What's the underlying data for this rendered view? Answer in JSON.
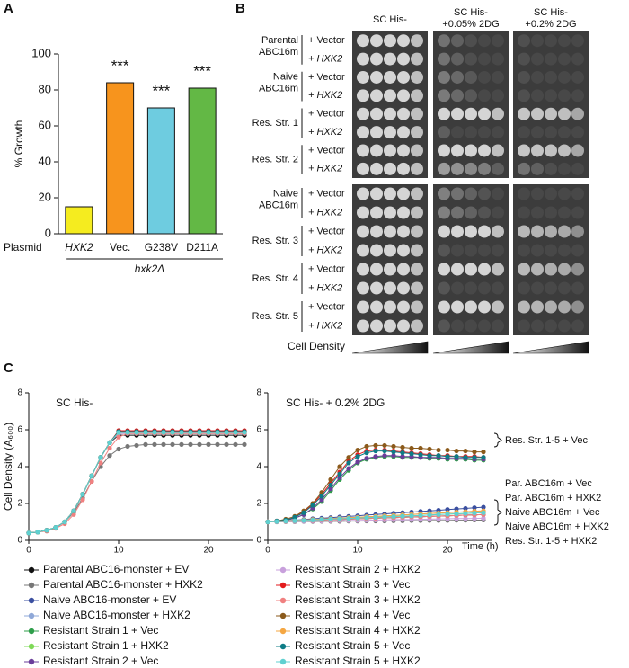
{
  "panel_labels": [
    "A",
    "B",
    "C"
  ],
  "chart_data": [
    {
      "type": "bar",
      "categories": [
        "HXK2",
        "Vec.",
        "G238V",
        "D211A"
      ],
      "values": [
        15,
        84,
        70,
        81
      ],
      "colors": [
        "#f5ec1f",
        "#f7941d",
        "#6ecce0",
        "#63b845"
      ],
      "annotations": [
        null,
        "***",
        "***",
        "***"
      ],
      "ylim": [
        0,
        100
      ],
      "yticks": [
        0,
        20,
        40,
        60,
        80,
        100
      ],
      "y_label": "% Growth",
      "x_label": "Plasmid",
      "group_label": "hxk2Δ"
    },
    {
      "type": "line",
      "title": "SC His-",
      "y_label": "Cell Density (A₆₀₀)",
      "x": [
        0,
        1,
        2,
        3,
        4,
        5,
        6,
        7,
        8,
        9,
        10,
        11,
        12,
        13,
        14,
        15,
        16,
        17,
        18,
        19,
        20,
        21,
        22,
        23,
        24
      ],
      "xlim": [
        0,
        25
      ],
      "xticks": [
        0,
        10,
        20
      ],
      "ylim": [
        0,
        8
      ],
      "yticks": [
        0,
        2,
        4,
        6,
        8
      ],
      "series": [
        {
          "name": "Parental ABC16-monster + EV",
          "color": "#111111",
          "values": [
            0.4,
            0.45,
            0.55,
            0.7,
            1.0,
            1.6,
            2.5,
            3.5,
            4.5,
            5.3,
            5.7,
            5.7,
            5.7,
            5.7,
            5.7,
            5.7,
            5.7,
            5.7,
            5.7,
            5.7,
            5.7,
            5.7,
            5.7,
            5.7,
            5.7
          ]
        },
        {
          "name": "Parental ABC16-monster + HXK2",
          "color": "#777777",
          "values": [
            0.4,
            0.45,
            0.55,
            0.7,
            1.0,
            1.5,
            2.3,
            3.2,
            4.0,
            4.6,
            4.95,
            5.1,
            5.15,
            5.2,
            5.2,
            5.2,
            5.2,
            5.2,
            5.2,
            5.2,
            5.2,
            5.2,
            5.2,
            5.2,
            5.2
          ]
        },
        {
          "name": "Naive ABC16-monster + EV",
          "color": "#3a4fa0",
          "values": [
            0.4,
            0.45,
            0.55,
            0.7,
            1.0,
            1.6,
            2.5,
            3.5,
            4.5,
            5.3,
            5.8,
            5.8,
            5.8,
            5.8,
            5.8,
            5.8,
            5.8,
            5.8,
            5.8,
            5.8,
            5.8,
            5.8,
            5.8,
            5.8,
            5.8
          ]
        },
        {
          "name": "Naive ABC16-monster + HXK2",
          "color": "#8fa8d8",
          "values": [
            0.4,
            0.45,
            0.55,
            0.7,
            1.0,
            1.6,
            2.5,
            3.5,
            4.5,
            5.3,
            5.85,
            5.85,
            5.85,
            5.85,
            5.85,
            5.85,
            5.85,
            5.85,
            5.85,
            5.85,
            5.85,
            5.85,
            5.85,
            5.85,
            5.85
          ]
        },
        {
          "name": "Resistant Strain 1 + Vec",
          "color": "#2e9e4a",
          "values": [
            0.4,
            0.45,
            0.55,
            0.7,
            1.0,
            1.6,
            2.5,
            3.5,
            4.5,
            5.3,
            5.9,
            5.9,
            5.9,
            5.9,
            5.9,
            5.9,
            5.9,
            5.9,
            5.9,
            5.9,
            5.9,
            5.9,
            5.9,
            5.9,
            5.9
          ]
        },
        {
          "name": "Resistant Strain 1 + HXK2",
          "color": "#7ed957",
          "values": [
            0.4,
            0.45,
            0.55,
            0.7,
            1.0,
            1.6,
            2.5,
            3.5,
            4.5,
            5.3,
            5.9,
            5.9,
            5.9,
            5.9,
            5.9,
            5.9,
            5.9,
            5.9,
            5.9,
            5.9,
            5.9,
            5.9,
            5.9,
            5.9,
            5.9
          ]
        },
        {
          "name": "Resistant Strain 2 + Vec",
          "color": "#6a3d9a",
          "values": [
            0.4,
            0.45,
            0.55,
            0.7,
            1.0,
            1.6,
            2.5,
            3.5,
            4.5,
            5.3,
            5.85,
            5.85,
            5.85,
            5.85,
            5.85,
            5.85,
            5.85,
            5.85,
            5.85,
            5.85,
            5.85,
            5.85,
            5.85,
            5.85,
            5.85
          ]
        },
        {
          "name": "Resistant Strain 2 + HXK2",
          "color": "#c8a0dc",
          "values": [
            0.4,
            0.45,
            0.55,
            0.7,
            1.0,
            1.6,
            2.5,
            3.5,
            4.5,
            5.3,
            5.8,
            5.8,
            5.8,
            5.8,
            5.8,
            5.8,
            5.8,
            5.8,
            5.8,
            5.8,
            5.8,
            5.8,
            5.8,
            5.8,
            5.8
          ]
        },
        {
          "name": "Resistant Strain 3 + Vec",
          "color": "#e31a1c",
          "values": [
            0.4,
            0.45,
            0.55,
            0.7,
            1.0,
            1.6,
            2.5,
            3.5,
            4.5,
            5.3,
            5.95,
            5.95,
            5.95,
            5.95,
            5.95,
            5.95,
            5.95,
            5.95,
            5.95,
            5.95,
            5.95,
            5.95,
            5.95,
            5.95,
            5.95
          ]
        },
        {
          "name": "Resistant Strain 3 + HXK2",
          "color": "#f08080",
          "values": [
            0.4,
            0.45,
            0.5,
            0.65,
            0.9,
            1.4,
            2.2,
            3.2,
            4.2,
            5.0,
            5.6,
            5.8,
            5.8,
            5.8,
            5.8,
            5.8,
            5.8,
            5.8,
            5.8,
            5.8,
            5.8,
            5.8,
            5.8,
            5.8,
            5.8
          ]
        },
        {
          "name": "Resistant Strain 4 + Vec",
          "color": "#8b5a1b",
          "values": [
            0.4,
            0.45,
            0.55,
            0.7,
            1.0,
            1.6,
            2.5,
            3.5,
            4.5,
            5.3,
            5.9,
            5.9,
            5.9,
            5.9,
            5.9,
            5.9,
            5.9,
            5.9,
            5.9,
            5.9,
            5.9,
            5.9,
            5.9,
            5.9,
            5.9
          ]
        },
        {
          "name": "Resistant Strain 4 + HXK2",
          "color": "#f5a742",
          "values": [
            0.4,
            0.45,
            0.55,
            0.7,
            1.0,
            1.6,
            2.5,
            3.5,
            4.5,
            5.3,
            5.85,
            5.85,
            5.85,
            5.85,
            5.85,
            5.85,
            5.85,
            5.85,
            5.85,
            5.85,
            5.85,
            5.85,
            5.85,
            5.85,
            5.85
          ]
        },
        {
          "name": "Resistant Strain 5 + Vec",
          "color": "#0e7c86",
          "values": [
            0.4,
            0.45,
            0.55,
            0.7,
            1.0,
            1.6,
            2.5,
            3.5,
            4.5,
            5.3,
            5.9,
            5.9,
            5.9,
            5.9,
            5.9,
            5.9,
            5.9,
            5.9,
            5.9,
            5.9,
            5.9,
            5.9,
            5.9,
            5.9,
            5.9
          ]
        },
        {
          "name": "Resistant Strain 5 + HXK2",
          "color": "#5fd0d0",
          "values": [
            0.4,
            0.45,
            0.55,
            0.7,
            1.0,
            1.6,
            2.5,
            3.5,
            4.5,
            5.3,
            5.85,
            5.85,
            5.85,
            5.85,
            5.85,
            5.85,
            5.85,
            5.85,
            5.85,
            5.85,
            5.85,
            5.85,
            5.85,
            5.85,
            5.85
          ]
        }
      ]
    },
    {
      "type": "line",
      "title": "SC His- + 0.2% 2DG",
      "x_label": "Time (h)",
      "x": [
        0,
        1,
        2,
        3,
        4,
        5,
        6,
        7,
        8,
        9,
        10,
        11,
        12,
        13,
        14,
        15,
        16,
        17,
        18,
        19,
        20,
        21,
        22,
        23,
        24
      ],
      "xlim": [
        0,
        25
      ],
      "xticks": [
        0,
        10,
        20
      ],
      "ylim": [
        0,
        8
      ],
      "yticks": [
        0,
        2,
        4,
        6,
        8
      ],
      "annotation_groups": [
        [
          "Res. Str. 1-5 + Vec"
        ],
        [
          "Par. ABC16m + Vec",
          "Par. ABC16m + HXK2",
          "Naive ABC16m + Vec",
          "Naive ABC16m + HXK2",
          "Res. Str. 1-5 + HXK2"
        ]
      ],
      "series": [
        {
          "color": "#111111",
          "values": [
            1.0,
            1.02,
            1.03,
            1.05,
            1.07,
            1.08,
            1.1,
            1.12,
            1.13,
            1.15,
            1.17,
            1.18,
            1.2,
            1.22,
            1.23,
            1.25,
            1.27,
            1.28,
            1.3,
            1.32,
            1.33,
            1.35,
            1.37,
            1.38,
            1.4
          ]
        },
        {
          "color": "#777777",
          "values": [
            1.0,
            1.0,
            1.01,
            1.01,
            1.02,
            1.02,
            1.03,
            1.03,
            1.03,
            1.04,
            1.04,
            1.05,
            1.05,
            1.05,
            1.06,
            1.06,
            1.07,
            1.07,
            1.08,
            1.08,
            1.08,
            1.09,
            1.09,
            1.1,
            1.1
          ]
        },
        {
          "color": "#3a4fa0",
          "values": [
            1.0,
            1.03,
            1.07,
            1.1,
            1.13,
            1.17,
            1.2,
            1.23,
            1.27,
            1.3,
            1.33,
            1.37,
            1.4,
            1.43,
            1.47,
            1.5,
            1.53,
            1.57,
            1.6,
            1.63,
            1.67,
            1.7,
            1.73,
            1.77,
            1.8
          ]
        },
        {
          "color": "#8fa8d8",
          "values": [
            1.0,
            1.03,
            1.05,
            1.08,
            1.1,
            1.13,
            1.15,
            1.18,
            1.2,
            1.23,
            1.25,
            1.28,
            1.3,
            1.33,
            1.35,
            1.38,
            1.4,
            1.43,
            1.45,
            1.48,
            1.5,
            1.53,
            1.55,
            1.58,
            1.6
          ]
        },
        {
          "color": "#2e9e4a",
          "values": [
            1.0,
            1.05,
            1.1,
            1.2,
            1.4,
            1.7,
            2.1,
            2.7,
            3.3,
            3.8,
            4.2,
            4.4,
            4.5,
            4.55,
            4.55,
            4.5,
            4.5,
            4.5,
            4.45,
            4.45,
            4.4,
            4.4,
            4.4,
            4.35,
            4.35
          ]
        },
        {
          "color": "#7ed957",
          "values": [
            1.0,
            1.02,
            1.04,
            1.06,
            1.08,
            1.1,
            1.13,
            1.15,
            1.17,
            1.19,
            1.21,
            1.23,
            1.25,
            1.27,
            1.29,
            1.31,
            1.33,
            1.35,
            1.38,
            1.4,
            1.42,
            1.44,
            1.46,
            1.48,
            1.5
          ]
        },
        {
          "color": "#6a3d9a",
          "values": [
            1.0,
            1.05,
            1.1,
            1.2,
            1.4,
            1.75,
            2.2,
            2.8,
            3.4,
            3.9,
            4.25,
            4.45,
            4.55,
            4.6,
            4.6,
            4.55,
            4.55,
            4.5,
            4.5,
            4.5,
            4.45,
            4.45,
            4.45,
            4.4,
            4.4
          ]
        },
        {
          "color": "#c8a0dc",
          "values": [
            1.0,
            1.01,
            1.02,
            1.03,
            1.03,
            1.04,
            1.05,
            1.06,
            1.07,
            1.08,
            1.08,
            1.09,
            1.1,
            1.11,
            1.12,
            1.13,
            1.13,
            1.14,
            1.15,
            1.16,
            1.17,
            1.18,
            1.18,
            1.19,
            1.2
          ]
        },
        {
          "color": "#e31a1c",
          "values": [
            1.0,
            1.05,
            1.1,
            1.25,
            1.55,
            1.95,
            2.5,
            3.1,
            3.7,
            4.3,
            4.65,
            4.85,
            4.9,
            4.9,
            4.85,
            4.8,
            4.75,
            4.7,
            4.65,
            4.6,
            4.6,
            4.55,
            4.55,
            4.55,
            4.5
          ]
        },
        {
          "color": "#f08080",
          "values": [
            1.0,
            1.02,
            1.03,
            1.05,
            1.07,
            1.08,
            1.1,
            1.12,
            1.13,
            1.15,
            1.17,
            1.18,
            1.2,
            1.22,
            1.23,
            1.25,
            1.27,
            1.28,
            1.3,
            1.32,
            1.33,
            1.35,
            1.37,
            1.38,
            1.4
          ]
        },
        {
          "color": "#8b5a1b",
          "values": [
            1.0,
            1.05,
            1.15,
            1.3,
            1.6,
            2.0,
            2.6,
            3.3,
            4.0,
            4.5,
            4.9,
            5.1,
            5.15,
            5.15,
            5.1,
            5.05,
            5.0,
            5.0,
            4.95,
            4.9,
            4.9,
            4.85,
            4.85,
            4.8,
            4.8
          ]
        },
        {
          "color": "#f5a742",
          "values": [
            1.0,
            1.03,
            1.05,
            1.08,
            1.1,
            1.13,
            1.15,
            1.18,
            1.2,
            1.23,
            1.25,
            1.28,
            1.3,
            1.33,
            1.35,
            1.38,
            1.4,
            1.43,
            1.45,
            1.48,
            1.5,
            1.53,
            1.55,
            1.58,
            1.6
          ]
        },
        {
          "color": "#0e7c86",
          "values": [
            1.0,
            1.05,
            1.1,
            1.25,
            1.5,
            1.9,
            2.4,
            3.0,
            3.6,
            4.2,
            4.55,
            4.75,
            4.85,
            4.85,
            4.8,
            4.75,
            4.7,
            4.65,
            4.6,
            4.6,
            4.55,
            4.55,
            4.5,
            4.5,
            4.5
          ]
        },
        {
          "color": "#5fd0d0",
          "values": [
            1.0,
            1.02,
            1.04,
            1.06,
            1.08,
            1.1,
            1.13,
            1.15,
            1.17,
            1.19,
            1.21,
            1.23,
            1.25,
            1.27,
            1.29,
            1.31,
            1.33,
            1.35,
            1.38,
            1.4,
            1.42,
            1.44,
            1.46,
            1.48,
            1.5
          ]
        }
      ]
    }
  ],
  "spot_assay": {
    "columns": [
      [
        "SC His-"
      ],
      [
        "SC His-",
        "+0.05% 2DG"
      ],
      [
        "SC His-",
        "+0.2% 2DG"
      ]
    ],
    "blocks": [
      [
        {
          "label": [
            "Parental",
            "ABC16m"
          ],
          "rows": [
            "+ Vector",
            "+ HXK2"
          ]
        },
        {
          "label": [
            "Naive",
            "ABC16m"
          ],
          "rows": [
            "+ Vector",
            "+ HXK2"
          ]
        },
        {
          "label": [
            "Res. Str. 1"
          ],
          "rows": [
            "+ Vector",
            "+ HXK2"
          ]
        },
        {
          "label": [
            "Res. Str. 2"
          ],
          "rows": [
            "+ Vector",
            "+ HXK2"
          ]
        }
      ],
      [
        {
          "label": [
            "Naive",
            "ABC16m"
          ],
          "rows": [
            "+ Vector",
            "+ HXK2"
          ]
        },
        {
          "label": [
            "Res. Str. 3"
          ],
          "rows": [
            "+ Vector",
            "+ HXK2"
          ]
        },
        {
          "label": [
            "Res. Str. 4"
          ],
          "rows": [
            "+ Vector",
            "+ HXK2"
          ]
        },
        {
          "label": [
            "Res. Str. 5"
          ],
          "rows": [
            "+ Vector",
            "+ HXK2"
          ]
        }
      ]
    ],
    "density_label": "Cell Density"
  }
}
